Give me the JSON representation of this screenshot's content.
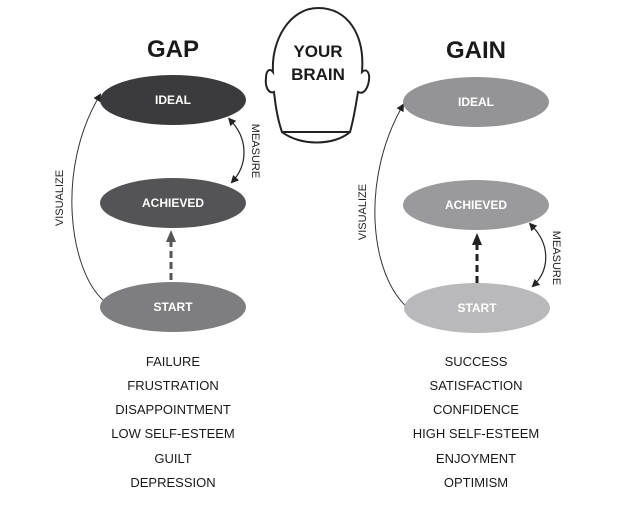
{
  "brain": {
    "line1": "YOUR",
    "line2": "BRAIN"
  },
  "gap": {
    "title": "GAP",
    "nodes": {
      "ideal": "IDEAL",
      "achieved": "ACHIEVED",
      "start": "START"
    },
    "edges": {
      "visualize": "VISUALIZE",
      "measure": "MEASURE"
    },
    "colors": {
      "ideal": "#3b3b3d",
      "achieved": "#545456",
      "start": "#7e7e81"
    },
    "feelings": [
      "FAILURE",
      "FRUSTRATION",
      "DISAPPOINTMENT",
      "LOW SELF-ESTEEM",
      "GUILT",
      "DEPRESSION"
    ]
  },
  "gain": {
    "title": "GAIN",
    "nodes": {
      "ideal": "IDEAL",
      "achieved": "ACHIEVED",
      "start": "START"
    },
    "edges": {
      "visualize": "VISUALIZE",
      "measure": "MEASURE"
    },
    "colors": {
      "ideal": "#949497",
      "achieved": "#9a9a9d",
      "start": "#b9b9bb"
    },
    "feelings": [
      "SUCCESS",
      "SATISFACTION",
      "CONFIDENCE",
      "HIGH SELF-ESTEEM",
      "ENJOYMENT",
      "OPTIMISM"
    ]
  }
}
